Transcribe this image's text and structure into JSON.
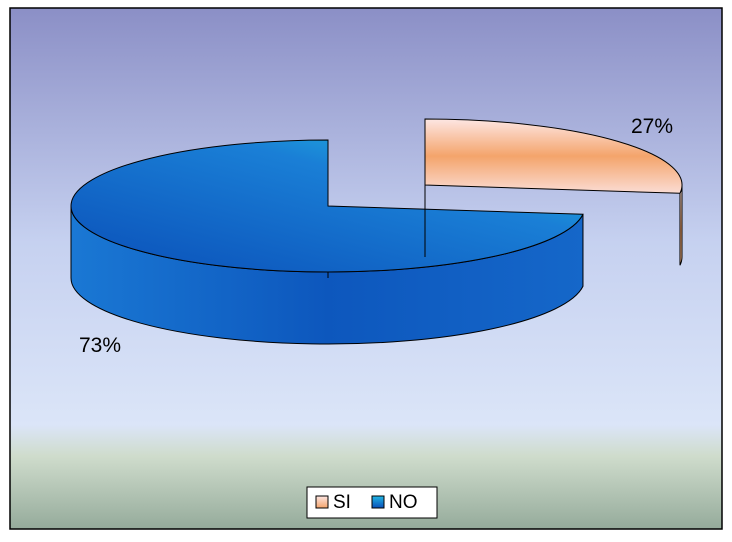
{
  "chart_data": {
    "type": "pie",
    "style": "3d-exploded",
    "categories": [
      "SI",
      "NO"
    ],
    "values": [
      27,
      73
    ],
    "data_labels": [
      "27%",
      "73%"
    ],
    "legend": {
      "placement": "bottom",
      "items": [
        {
          "label": "SI",
          "color": "#f4a46b"
        },
        {
          "label": "NO",
          "color": "#1a6fcf"
        }
      ]
    },
    "colors": {
      "SI": "#f4a46b",
      "NO": "#1a6fcf",
      "background_top": "#8f93c8",
      "background_mid": "#d9e3f7",
      "background_bottom": "#9aaea0"
    }
  }
}
